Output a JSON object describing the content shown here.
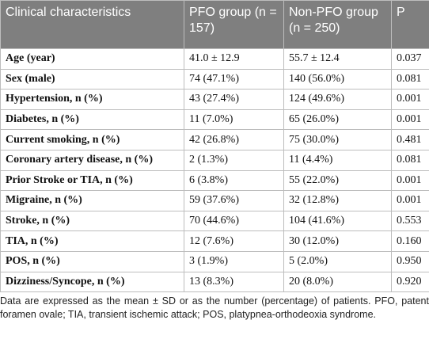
{
  "table": {
    "header": [
      "Clinical characteristics",
      "PFO group (n = 157)",
      "Non-PFO group (n = 250)",
      "P"
    ],
    "rows": [
      [
        "Age (year)",
        "41.0 ± 12.9",
        "55.7 ± 12.4",
        "0.037"
      ],
      [
        "Sex (male)",
        "74 (47.1%)",
        "140 (56.0%)",
        "0.081"
      ],
      [
        "Hypertension, n (%)",
        "43 (27.4%)",
        "124 (49.6%)",
        "0.001"
      ],
      [
        "Diabetes, n (%)",
        "11 (7.0%)",
        "65 (26.0%)",
        "0.001"
      ],
      [
        "Current smoking, n (%)",
        "42 (26.8%)",
        "75 (30.0%)",
        "0.481"
      ],
      [
        "Coronary artery disease, n (%)",
        "2 (1.3%)",
        "11 (4.4%)",
        "0.081"
      ],
      [
        "Prior Stroke or TIA, n (%)",
        "6 (3.8%)",
        "55 (22.0%)",
        "0.001"
      ],
      [
        "Migraine, n (%)",
        "59 (37.6%)",
        "32 (12.8%)",
        "0.001"
      ],
      [
        "Stroke, n (%)",
        "70 (44.6%)",
        "104 (41.6%)",
        "0.553"
      ],
      [
        "TIA, n (%)",
        "12 (7.6%)",
        "30 (12.0%)",
        "0.160"
      ],
      [
        "POS, n (%)",
        "3 (1.9%)",
        "5 (2.0%)",
        "0.950"
      ],
      [
        "Dizziness/Syncope, n (%)",
        "13 (8.3%)",
        "20 (8.0%)",
        "0.920"
      ]
    ]
  },
  "footnote": "Data are expressed as the mean ± SD or as the number (percentage) of patients. PFO, patent foramen ovale; TIA, transient ischemic attack; POS, platypnea-orthodeoxia syndrome."
}
